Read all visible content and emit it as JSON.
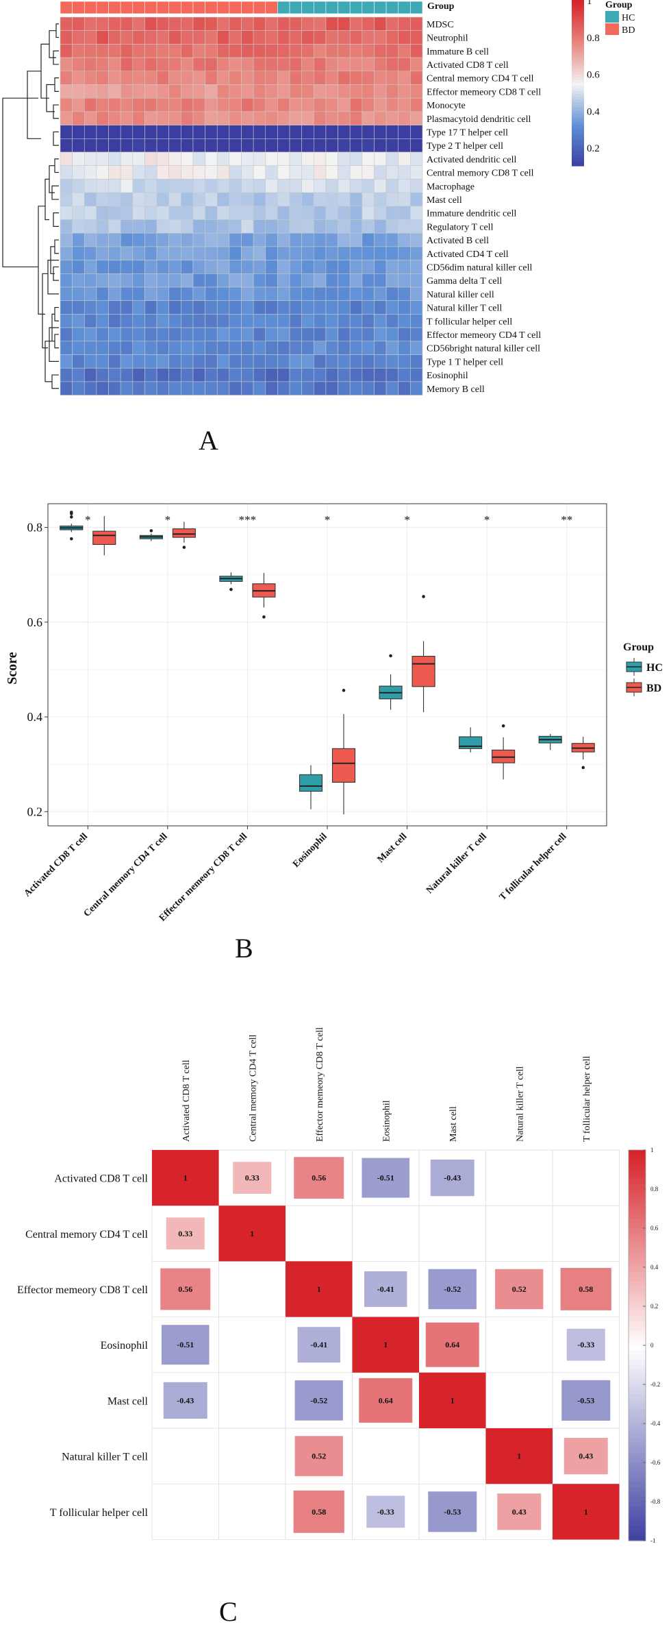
{
  "panel_labels": {
    "a": "A",
    "b": "B",
    "c": "C"
  },
  "chart_data": [
    {
      "panel": "A",
      "type": "heatmap",
      "top_annotation_label": "Group",
      "n_bd": 18,
      "n_hc": 12,
      "rows": [
        "MDSC",
        "Neutrophil",
        "Immature  B cell",
        "Activated CD8 T cell",
        "Central memory CD4 T cell",
        "Effector memeory CD8 T cell",
        "Monocyte",
        "Plasmacytoid dendritic cell",
        "Type 17 T helper cell",
        "Type 2 T helper cell",
        "Activated dendritic cell",
        "Central memory CD8 T cell",
        "Macrophage",
        "Mast cell",
        "Immature dendritic cell",
        "Regulatory T cell",
        "Activated B cell",
        "Activated CD4 T cell",
        "CD56dim natural killer cell",
        "Gamma delta T cell",
        "Natural killer cell",
        "Natural killer T cell",
        "T follicular helper cell",
        "Effector memeory CD4 T cell",
        "CD56bright natural killer cell",
        "Type 1 T helper cell",
        "Eosinophil",
        "Memory B cell"
      ],
      "row_means": [
        0.86,
        0.85,
        0.82,
        0.8,
        0.79,
        0.74,
        0.78,
        0.76,
        0.06,
        0.07,
        0.55,
        0.54,
        0.5,
        0.47,
        0.46,
        0.45,
        0.37,
        0.36,
        0.35,
        0.35,
        0.34,
        0.29,
        0.3,
        0.3,
        0.31,
        0.3,
        0.24,
        0.26
      ],
      "color_scale": {
        "min": 0.1,
        "max": 1.0,
        "ticks": [
          0.2,
          0.4,
          0.6,
          0.8,
          1
        ],
        "tick_labels": [
          "0.2",
          "0.4",
          "0.6",
          "0.8",
          "1"
        ],
        "colors": [
          "#3b3ea0",
          "#5e8fd6",
          "#f3f3f3",
          "#e8857d",
          "#d6242a"
        ]
      },
      "legend": {
        "title": "Group",
        "entries": [
          {
            "name": "HC",
            "color": "#3da9b4"
          },
          {
            "name": "BD",
            "color": "#f2695c"
          }
        ]
      }
    },
    {
      "panel": "B",
      "type": "box",
      "ylabel": "Score",
      "ylim": [
        0.17,
        0.85
      ],
      "yticks": [
        0.2,
        0.4,
        0.6,
        0.8
      ],
      "ytick_labels": [
        "0.2",
        "0.4",
        "0.6",
        "0.8"
      ],
      "categories": [
        "Activated CD8 T cell",
        "Central memory CD4 T cell",
        "Effector memeory CD8 T cell",
        "Eosinophil",
        "Mast cell",
        "Natural killer T cell",
        "T follicular helper cell"
      ],
      "significance": [
        "*",
        "*",
        "***",
        "*",
        "*",
        "*",
        "**"
      ],
      "series": [
        {
          "name": "HC",
          "color": "#2f9ea8",
          "boxes": [
            {
              "q1": 0.795,
              "median": 0.799,
              "q3": 0.803,
              "lo": 0.79,
              "hi": 0.808,
              "out": [
                0.776,
                0.822,
                0.829,
                0.832
              ]
            },
            {
              "q1": 0.776,
              "median": 0.78,
              "q3": 0.783,
              "lo": 0.771,
              "hi": 0.787,
              "out": [
                0.793
              ]
            },
            {
              "q1": 0.686,
              "median": 0.692,
              "q3": 0.697,
              "lo": 0.68,
              "hi": 0.705,
              "out": [
                0.669
              ]
            },
            {
              "q1": 0.243,
              "median": 0.254,
              "q3": 0.278,
              "lo": 0.205,
              "hi": 0.298,
              "out": []
            },
            {
              "q1": 0.438,
              "median": 0.451,
              "q3": 0.465,
              "lo": 0.415,
              "hi": 0.49,
              "out": [
                0.529
              ]
            },
            {
              "q1": 0.333,
              "median": 0.338,
              "q3": 0.358,
              "lo": 0.325,
              "hi": 0.378,
              "out": []
            },
            {
              "q1": 0.345,
              "median": 0.352,
              "q3": 0.359,
              "lo": 0.33,
              "hi": 0.364,
              "out": []
            }
          ]
        },
        {
          "name": "BD",
          "color": "#ee5a4f",
          "boxes": [
            {
              "q1": 0.764,
              "median": 0.783,
              "q3": 0.792,
              "lo": 0.741,
              "hi": 0.824,
              "out": []
            },
            {
              "q1": 0.779,
              "median": 0.786,
              "q3": 0.797,
              "lo": 0.768,
              "hi": 0.812,
              "out": [
                0.758
              ]
            },
            {
              "q1": 0.653,
              "median": 0.666,
              "q3": 0.681,
              "lo": 0.631,
              "hi": 0.704,
              "out": [
                0.611
              ]
            },
            {
              "q1": 0.262,
              "median": 0.302,
              "q3": 0.333,
              "lo": 0.194,
              "hi": 0.406,
              "out": [
                0.456
              ]
            },
            {
              "q1": 0.464,
              "median": 0.512,
              "q3": 0.528,
              "lo": 0.41,
              "hi": 0.56,
              "out": [
                0.654
              ]
            },
            {
              "q1": 0.303,
              "median": 0.315,
              "q3": 0.33,
              "lo": 0.268,
              "hi": 0.357,
              "out": [
                0.381
              ]
            },
            {
              "q1": 0.326,
              "median": 0.334,
              "q3": 0.344,
              "lo": 0.31,
              "hi": 0.358,
              "out": [
                0.293
              ]
            }
          ]
        }
      ],
      "legend": {
        "title": "Group",
        "entries": [
          "HC",
          "BD"
        ]
      }
    },
    {
      "panel": "C",
      "type": "correlation_matrix",
      "labels": [
        "Activated CD8 T cell",
        "Central memory CD4 T cell",
        "Effector memeory CD8 T cell",
        "Eosinophil",
        "Mast cell",
        "Natural killer T cell",
        "T follicular helper cell"
      ],
      "matrix": [
        [
          1,
          0.33,
          0.56,
          -0.51,
          -0.43,
          null,
          null
        ],
        [
          0.33,
          1,
          null,
          null,
          null,
          null,
          null
        ],
        [
          0.56,
          null,
          1,
          -0.41,
          -0.52,
          0.52,
          0.58
        ],
        [
          -0.51,
          null,
          -0.41,
          1,
          0.64,
          null,
          -0.33
        ],
        [
          -0.43,
          null,
          -0.52,
          0.64,
          1,
          null,
          -0.53
        ],
        [
          null,
          null,
          0.52,
          null,
          null,
          1,
          0.43
        ],
        [
          null,
          null,
          0.58,
          -0.33,
          -0.53,
          0.43,
          1
        ]
      ],
      "cell_labels": [
        [
          "1",
          "0.33",
          "0.56",
          "-0.51",
          "-0.43",
          "",
          ""
        ],
        [
          "0.33",
          "1",
          "",
          "",
          "",
          "",
          ""
        ],
        [
          "0.56",
          "",
          "1",
          "-0.41",
          "-0.52",
          "0.52",
          "0.58"
        ],
        [
          "-0.51",
          "",
          "-0.41",
          "1",
          "0.64",
          "",
          "-0.33"
        ],
        [
          "-0.43",
          "",
          "-0.52",
          "0.64",
          "1",
          "",
          "-0.53"
        ],
        [
          "",
          "",
          "0.52",
          "",
          "",
          "1",
          "0.43"
        ],
        [
          "",
          "",
          "0.58",
          "-0.33",
          "-0.53",
          "0.43",
          "1"
        ]
      ],
      "colorbar": {
        "ticks": [
          1,
          0.8,
          0.6,
          0.4,
          0.2,
          0,
          -0.2,
          -0.4,
          -0.6,
          -0.8,
          -1
        ],
        "tick_labels": [
          "1",
          "0.8",
          "0.6",
          "0.4",
          "0.2",
          "0",
          "-0.2",
          "-0.4",
          "-0.6",
          "-0.8",
          "-1"
        ],
        "colors": [
          "#3b3ea0",
          "#ffffff",
          "#d6242a"
        ]
      }
    }
  ]
}
